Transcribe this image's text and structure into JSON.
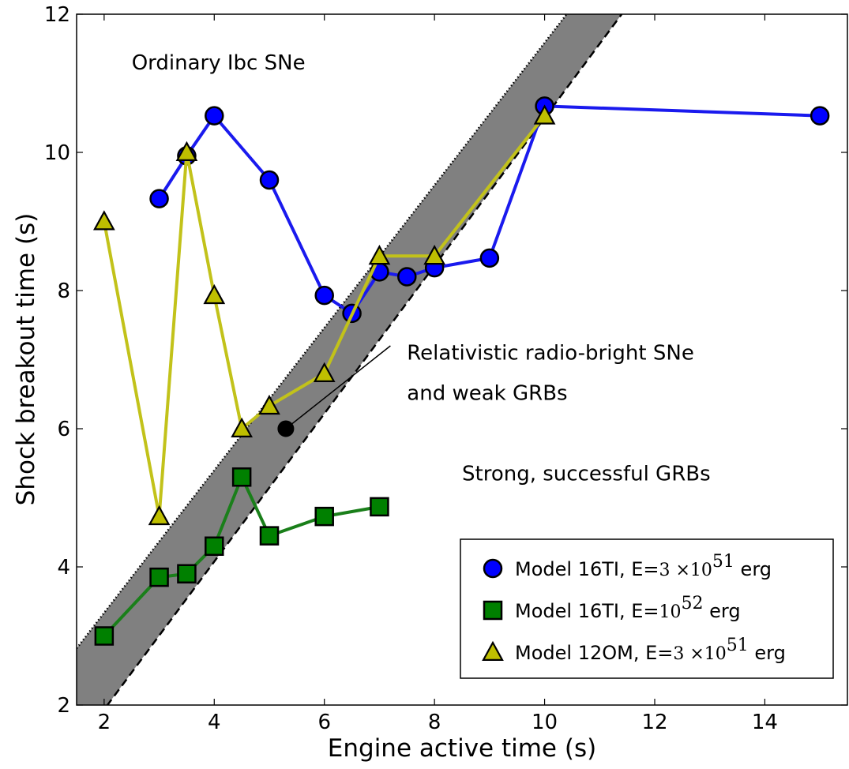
{
  "chart_data": {
    "type": "line",
    "xlabel": "Engine active time (s)",
    "ylabel": "Shock breakout time (s)",
    "xlim": [
      1.5,
      15.5
    ],
    "ylim": [
      2,
      12
    ],
    "xticks": [
      2,
      4,
      6,
      8,
      10,
      12,
      14
    ],
    "yticks": [
      2,
      4,
      6,
      8,
      10,
      12
    ],
    "grid": false,
    "legend_position": "lower-right",
    "band": {
      "upper_line": {
        "style": "dotted",
        "points": [
          [
            1.5,
            2.82
          ],
          [
            10.4,
            12.0
          ]
        ]
      },
      "lower_line": {
        "style": "dashed",
        "points": [
          [
            1.5,
            1.4
          ],
          [
            11.4,
            12.0
          ]
        ]
      },
      "fill_color": "#808080"
    },
    "series": [
      {
        "name_text": "Model 16TI, E=",
        "name_math_base": "3 ×10",
        "name_math_sup": "51",
        "name_unit": " erg",
        "marker": "circle",
        "color": "#0000ff",
        "line_color": "#1a1aee",
        "x": [
          3,
          3.5,
          4,
          5,
          6,
          6.5,
          7,
          7.5,
          8,
          9,
          10,
          15
        ],
        "y": [
          9.33,
          9.95,
          10.53,
          9.6,
          7.93,
          7.67,
          8.27,
          8.2,
          8.33,
          8.47,
          10.67,
          10.53
        ]
      },
      {
        "name_text": "Model 16TI, E=",
        "name_math_base": "10",
        "name_math_sup": "52",
        "name_unit": " erg",
        "marker": "square",
        "color": "#008000",
        "line_color": "#1a7f1a",
        "x": [
          2,
          3,
          3.5,
          4,
          4.5,
          5,
          6,
          7
        ],
        "y": [
          3.0,
          3.85,
          3.9,
          4.3,
          5.3,
          4.45,
          4.73,
          4.87
        ]
      },
      {
        "name_text": "Model 12OM, E=",
        "name_math_base": "3 ×10",
        "name_math_sup": "51",
        "name_unit": " erg",
        "marker": "triangle",
        "color": "#bfbf00",
        "line_color": "#c2c21a",
        "x": [
          2,
          3,
          3.5,
          4,
          4.5,
          5,
          6,
          7,
          8,
          10
        ],
        "y": [
          9.0,
          4.73,
          10.0,
          7.93,
          6.0,
          6.33,
          6.8,
          8.5,
          8.5,
          10.53
        ]
      }
    ],
    "annotations": [
      {
        "text": "Ordinary Ibc SNe",
        "x": 2.5,
        "y": 11.2
      },
      {
        "text": "Relativistic radio-bright SNe",
        "x": 7.5,
        "y": 7.0
      },
      {
        "text": "and weak GRBs",
        "x": 7.5,
        "y": 6.42
      },
      {
        "text": "Strong, successful GRBs",
        "x": 8.5,
        "y": 5.25
      }
    ],
    "marker_point": {
      "x": 5.3,
      "y": 6.0,
      "arrow_to": {
        "x": 7.2,
        "y": 7.2
      }
    }
  }
}
